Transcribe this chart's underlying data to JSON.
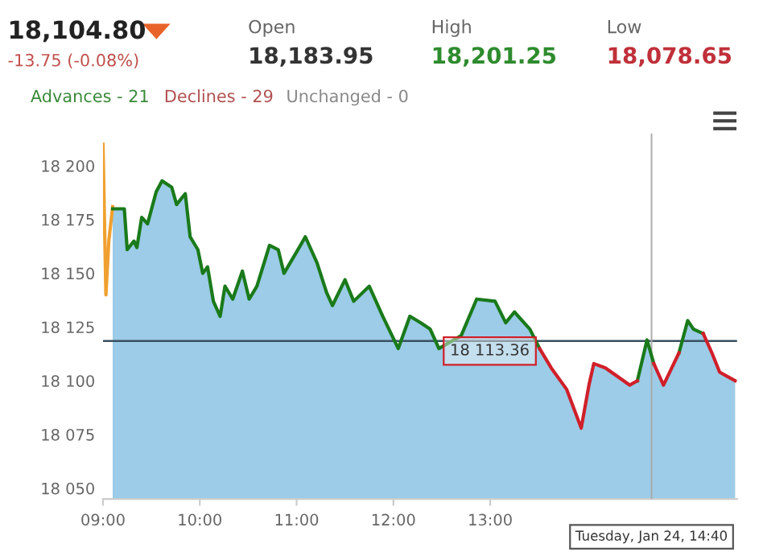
{
  "chart_data": {
    "type": "area",
    "title": "18,104.80",
    "subtitle": "-13.75 (-0.08%)",
    "annotations": [
      "Open",
      "18,183.95",
      "High",
      "18,201.25",
      "Low",
      "18,078.65",
      "Advances - 21",
      "Declines - 29",
      "Unchanged - 0",
      "18 113.36",
      "Tuesday, Jan 24, 14:40"
    ],
    "x": [
      9.1,
      9.22,
      9.25,
      9.32,
      9.35,
      9.4,
      9.46,
      9.55,
      9.61,
      9.71,
      9.76,
      9.85,
      9.9,
      9.98,
      10.03,
      10.08,
      10.14,
      10.21,
      10.26,
      10.34,
      10.44,
      10.51,
      10.59,
      10.72,
      10.81,
      10.87,
      11.04,
      11.09,
      11.21,
      11.31,
      11.37,
      11.5,
      11.59,
      11.75,
      11.89,
      12.05,
      12.17,
      12.28,
      12.38,
      12.47,
      12.7,
      12.86,
      13.05,
      13.16,
      13.25,
      13.41,
      13.51,
      13.63,
      13.79,
      13.94,
      14.02,
      14.07,
      14.19,
      14.44,
      14.52,
      14.62,
      14.69,
      14.79,
      14.95,
      15.04,
      15.1,
      15.2,
      15.29,
      15.37,
      15.45,
      15.53
    ],
    "series": [
      {
        "type": "line",
        "color": "#f0a030",
        "x": [
          9.0,
          9.03,
          9.06,
          9.1
        ],
        "values": [
          18210,
          18140,
          18165,
          18181
        ]
      },
      {
        "color": "#4aa3d4",
        "values": [
          18180,
          18180,
          18161,
          18165,
          18162,
          18176,
          18173,
          18188,
          18193,
          18190,
          18182,
          18187,
          18167,
          18161,
          18150,
          18153,
          18137,
          18130,
          18144,
          18138,
          18151,
          18138,
          18144,
          18163,
          18161,
          18150,
          18163,
          18167,
          18155,
          18141,
          18135,
          18147,
          18137,
          18144,
          18130,
          18115,
          18130,
          18127,
          18124,
          18115,
          18121,
          18138,
          18137,
          18127,
          18132,
          18124,
          18115,
          18106,
          18096,
          18078,
          18098,
          18108,
          18106,
          18098,
          18100,
          18119,
          18108,
          18098,
          18113,
          18128,
          18124,
          18122,
          18113,
          18104,
          18102,
          18100
        ]
      },
      {
        "type": "line",
        "color": "#1a7a1a",
        "values": [
          18180,
          18180,
          18161,
          18165,
          18162,
          18176,
          18173,
          18188,
          18193,
          18190,
          18182,
          18187,
          18167,
          18161,
          18150,
          18153,
          18137,
          18130,
          18144,
          18138,
          18151,
          18138,
          18144,
          18163,
          18161,
          18150,
          18163,
          18167,
          18155,
          18141,
          18135,
          18147,
          18137,
          18144,
          18130,
          18115,
          18130,
          18127,
          18124,
          18115,
          18121,
          18138,
          18137,
          18127,
          18132,
          18124,
          18115,
          null,
          null,
          null,
          null,
          null,
          null,
          null,
          18100,
          18119,
          18108,
          null,
          18113,
          18128,
          18124,
          18122,
          null,
          null,
          null,
          null
        ]
      },
      {
        "type": "line",
        "color": "#d0202a",
        "values": [
          null,
          null,
          null,
          null,
          null,
          null,
          null,
          null,
          null,
          null,
          null,
          null,
          null,
          null,
          null,
          null,
          null,
          null,
          null,
          null,
          null,
          null,
          null,
          null,
          null,
          null,
          null,
          null,
          null,
          null,
          null,
          null,
          null,
          null,
          null,
          null,
          null,
          null,
          null,
          null,
          null,
          null,
          null,
          null,
          null,
          null,
          18115,
          18106,
          18096,
          18078,
          18098,
          18108,
          18106,
          18098,
          18100,
          null,
          18108,
          18098,
          18113,
          null,
          null,
          18122,
          18113,
          18104,
          18102,
          18100
        ]
      }
    ],
    "ref_lines": [
      {
        "axis": "y",
        "value": 18118.55,
        "color": "#3a5060"
      },
      {
        "axis": "x",
        "value": 14.6667,
        "color": "#aaaaaa"
      }
    ],
    "xlim": [
      9.0,
      15.55
    ],
    "ylim": [
      18045,
      18215
    ],
    "xticks": [
      {
        "value": 9,
        "label": "09:00"
      },
      {
        "value": 10,
        "label": "10:00"
      },
      {
        "value": 11,
        "label": "11:00"
      },
      {
        "value": 12,
        "label": "12:00"
      },
      {
        "value": 13,
        "label": "13:00"
      }
    ],
    "yticks": [
      {
        "value": 18050,
        "label": "18 050"
      },
      {
        "value": 18075,
        "label": "18 075"
      },
      {
        "value": 18100,
        "label": "18 100"
      },
      {
        "value": 18125,
        "label": "18 125"
      },
      {
        "value": 18150,
        "label": "18 150"
      },
      {
        "value": 18175,
        "label": "18 175"
      },
      {
        "value": 18200,
        "label": "18 200"
      }
    ],
    "grid": false
  }
}
